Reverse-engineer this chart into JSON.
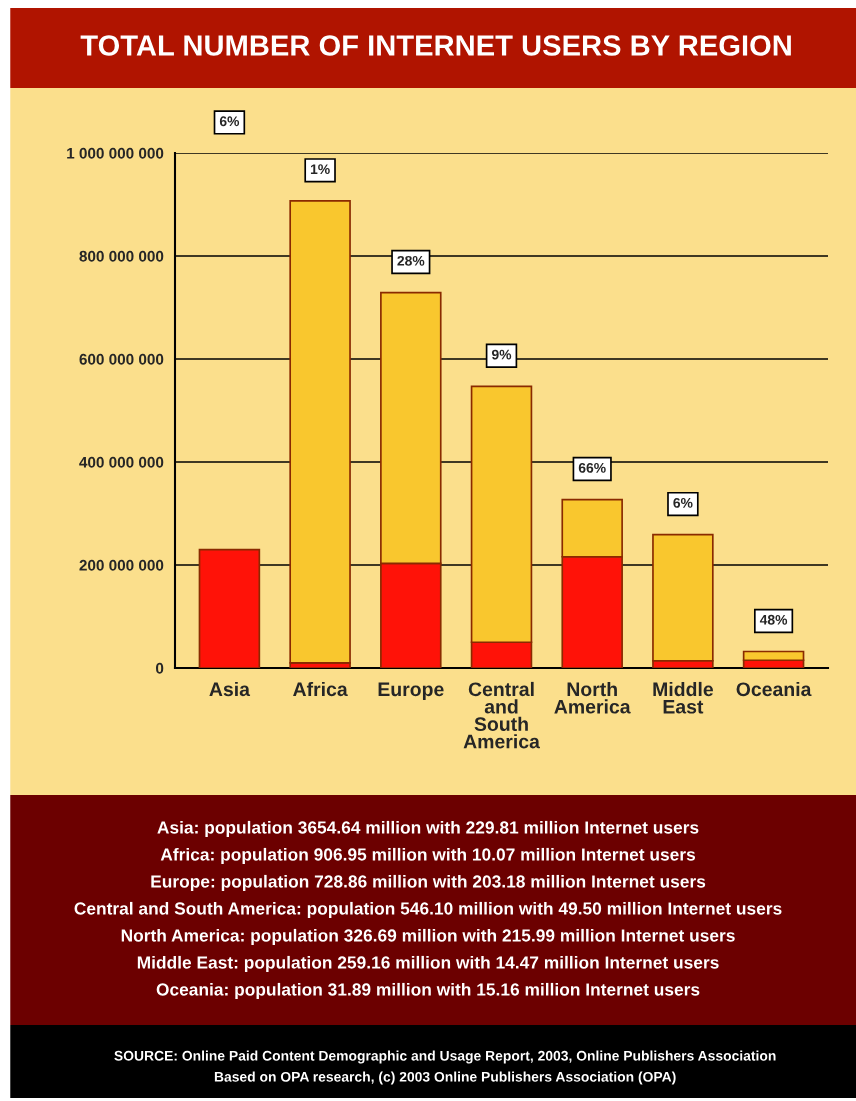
{
  "chart_data": {
    "type": "bar",
    "title": "TOTAL NUMBER OF INTERNET USERS BY REGION",
    "categories": [
      "Asia",
      "Africa",
      "Europe",
      "Central and South America",
      "North America",
      "Middle East",
      "Oceania"
    ],
    "stacked": true,
    "series": [
      {
        "color": "#ff1208",
        "values": [
          230000000,
          10000000,
          203000000,
          50000000,
          216000000,
          14000000,
          15000000
        ]
      },
      {
        "color": "#f9c72e",
        "values": [
          null,
          897000000,
          526000000,
          497000000,
          111000000,
          245000000,
          17000000
        ]
      }
    ],
    "ylim": [
      0,
      1000000000
    ],
    "yticks": [
      0,
      {
        "value": 200000000,
        "label": "200 000 000"
      },
      {
        "value": 400000000,
        "label": "400 000 000"
      },
      {
        "value": 600000000,
        "label": "600 000 000"
      },
      {
        "value": 800000000,
        "label": "800 000 000"
      },
      {
        "value": 1000000000,
        "label": "1 000 000 000"
      }
    ],
    "grid": "y",
    "annotations": [
      "6%",
      {
        "text": "1%",
        "x": "Africa",
        "y": 907000000
      },
      {
        "text": "28%",
        "x": "Europe",
        "y": 729000000
      },
      {
        "text": "9%",
        "x": "Central and South America",
        "y": 547000000
      },
      {
        "text": "66%",
        "x": "North America",
        "y": 327000000
      },
      {
        "text": "6%",
        "x": "Middle East",
        "y": 259000000
      },
      {
        "text": "48%",
        "x": "Oceania",
        "y": 32000000
      },
      "Asia: population 3654.64 million with 229.81 million Internet users",
      "Africa: population 906.95 million with 10.07 million Internet users",
      "Europe: population 728.86 million with 203.18 million Internet users",
      "Central and South America: population 546.10 million with 49.50 million Internet users",
      "North America: population 326.69 million with 215.99 million Internet users",
      "Middle East: population 259.16 million with 14.47 million Internet users",
      "Oceania: population 31.89 million with 15.16 million Internet users",
      "SOURCE: Online Paid Content Demographic and Usage Report, 2003, Online Publishers Association",
      "Based on OPA research, (c) 2003 Online Publishers Association (OPA)"
    ]
  }
}
